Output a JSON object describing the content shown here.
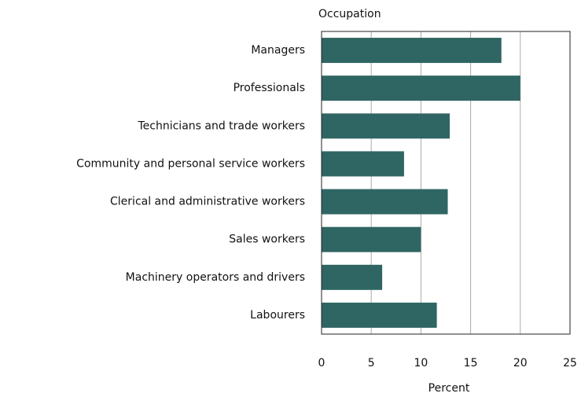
{
  "chart_data": {
    "type": "bar",
    "orientation": "horizontal",
    "y_label": "Occupation",
    "x_label": "Percent",
    "categories": [
      "Managers",
      "Professionals",
      "Technicians and trade workers",
      "Community and personal service workers",
      "Clerical and administrative workers",
      "Sales workers",
      "Machinery operators and drivers",
      "Labourers"
    ],
    "values": [
      18.1,
      20.0,
      12.9,
      8.3,
      12.7,
      10.0,
      6.1,
      11.6
    ],
    "color": "#2f6663",
    "xlim": [
      0,
      25
    ],
    "xticks": [
      0,
      5,
      10,
      15,
      20,
      25
    ],
    "grid": true
  }
}
